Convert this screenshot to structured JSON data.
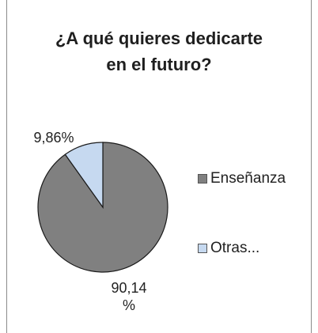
{
  "chart_data": {
    "type": "pie",
    "title_lines": [
      "¿A qué quieres dedicarte",
      "en el futuro?"
    ],
    "categories": [
      "Enseñanza",
      "Otras..."
    ],
    "values": [
      90.14,
      9.86
    ],
    "data_labels": [
      {
        "line1": "90,14",
        "line2": "%"
      },
      {
        "line1": "9,86%",
        "line2": ""
      }
    ],
    "colors": [
      "#808080",
      "#c6d9f0"
    ],
    "slice_border": "#1a1a1a",
    "start_angle_deg": 0,
    "direction": "clockwise",
    "legend_position": "right"
  }
}
